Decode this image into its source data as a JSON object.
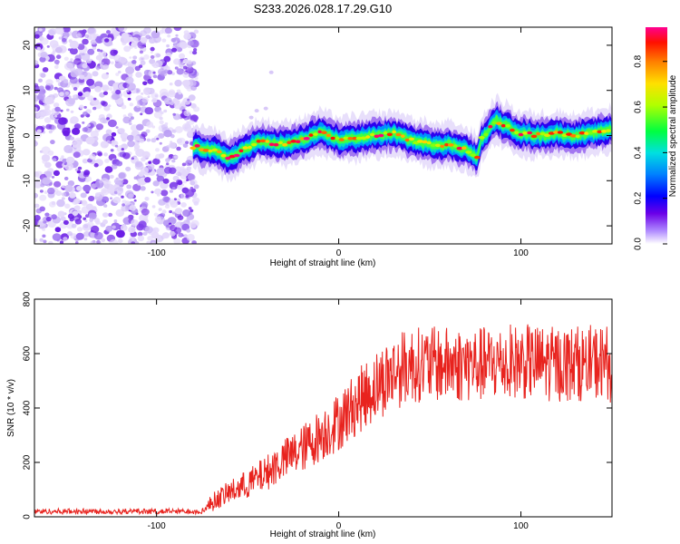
{
  "title": "S233.2026.028.17.29.G10",
  "chart_data": [
    {
      "type": "heatmap",
      "xlabel": "Height of straight line (km)",
      "ylabel": "Frequency (Hz)",
      "xlim": [
        -167,
        150
      ],
      "ylim": [
        -24,
        24
      ],
      "xticks": [
        -100,
        0,
        100
      ],
      "yticks": [
        -20,
        -10,
        0,
        10,
        20
      ],
      "colorbar": {
        "label": "Normalized spectral amplitude",
        "range": [
          0,
          0.95
        ],
        "ticks": [
          0.0,
          0.2,
          0.4,
          0.6,
          0.8
        ]
      },
      "ridge_line": {
        "description": "Doppler frequency trace",
        "x": [
          -80,
          -72,
          -65,
          -60,
          -55,
          -50,
          -45,
          -40,
          -35,
          -30,
          -25,
          -20,
          -15,
          -10,
          -5,
          0,
          10,
          20,
          30,
          40,
          50,
          60,
          70,
          76,
          78,
          82,
          86,
          90,
          95,
          100,
          110,
          120,
          130,
          140,
          150
        ],
        "y": [
          -2.5,
          -3.0,
          -4.0,
          -5.0,
          -4.0,
          -2.5,
          -1.5,
          -1.5,
          -1.8,
          -2.0,
          -1.5,
          -1.0,
          0.0,
          0.5,
          0.0,
          -1.0,
          -0.5,
          0.0,
          0.5,
          -1.0,
          -2.0,
          -2.0,
          -3.0,
          -5.0,
          -1.0,
          1.0,
          3.5,
          2.5,
          1.5,
          0.5,
          0.0,
          0.5,
          0.0,
          0.5,
          1.5
        ]
      },
      "noise_region": {
        "x_range": [
          -167,
          -82
        ]
      }
    },
    {
      "type": "line",
      "xlabel": "Height of straight line (km)",
      "ylabel": "SNR (10 * v/v)",
      "xlim": [
        -167,
        150
      ],
      "ylim": [
        0,
        800
      ],
      "xticks": [
        -100,
        0,
        100
      ],
      "yticks": [
        0,
        200,
        400,
        600,
        800
      ],
      "series": [
        {
          "name": "SNR",
          "color": "#e8231e",
          "envelope_x": [
            -167,
            -75,
            -68,
            -60,
            -50,
            -40,
            -30,
            -20,
            -10,
            0,
            10,
            20,
            30,
            40,
            60,
            80,
            100,
            120,
            150
          ],
          "envelope_y": [
            20,
            20,
            60,
            90,
            120,
            160,
            210,
            250,
            300,
            350,
            420,
            480,
            530,
            560,
            560,
            560,
            570,
            560,
            570
          ]
        }
      ]
    }
  ]
}
